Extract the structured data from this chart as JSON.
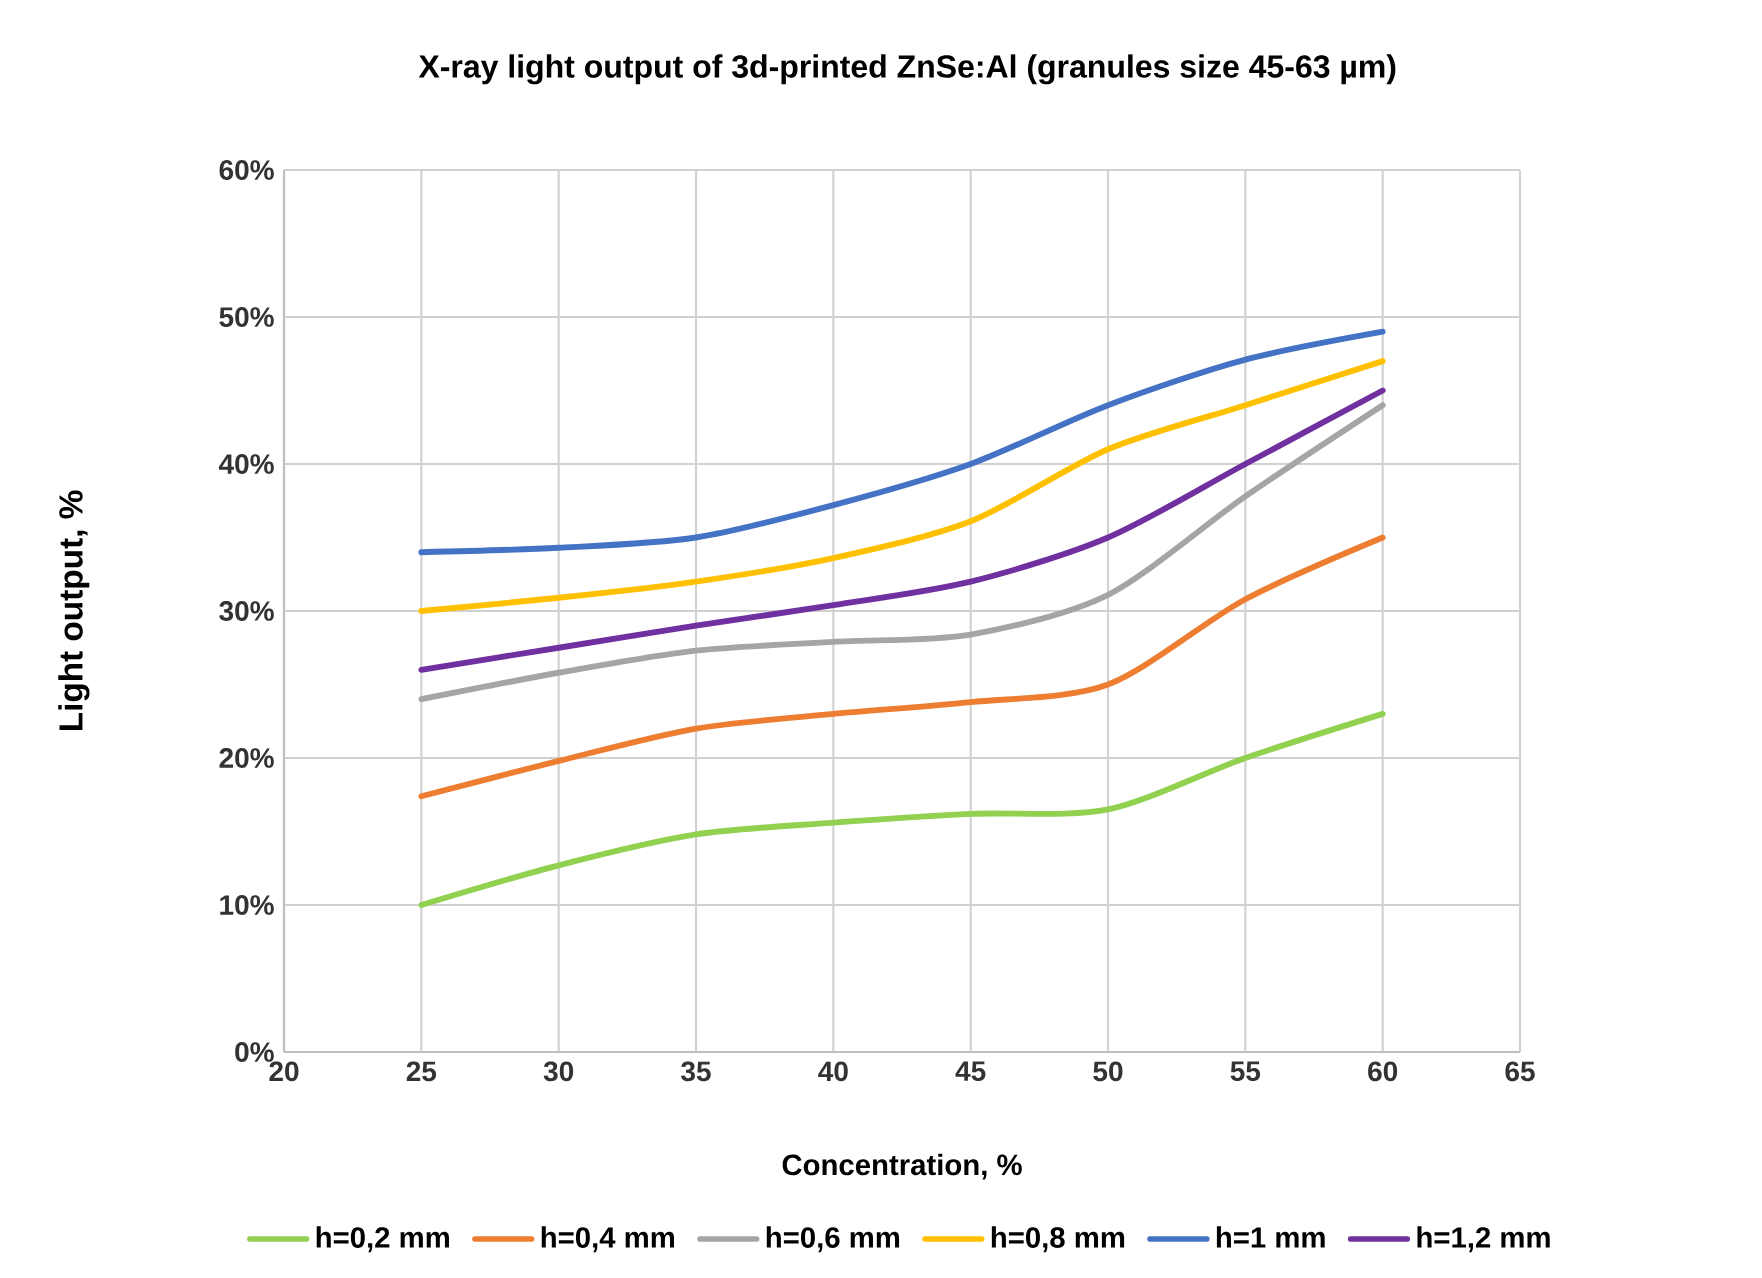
{
  "chart_data": {
    "type": "line",
    "title": "X-ray light output of 3d-printed ZnSe:Al (granules size 45-63 µm)",
    "xlabel": "Concentration, %",
    "ylabel": "Light output, %",
    "x": [
      25,
      30,
      35,
      40,
      45,
      50,
      55,
      60
    ],
    "xlim": [
      20,
      65
    ],
    "xticks": [
      20,
      25,
      30,
      35,
      40,
      45,
      50,
      55,
      60,
      65
    ],
    "ylim": [
      0,
      60
    ],
    "yticks": [
      {
        "value": 0,
        "label": "0%"
      },
      {
        "value": 10,
        "label": "10%"
      },
      {
        "value": 20,
        "label": "20%"
      },
      {
        "value": 30,
        "label": "30%"
      },
      {
        "value": 40,
        "label": "40%"
      },
      {
        "value": 50,
        "label": "50%"
      },
      {
        "value": 60,
        "label": "60%"
      }
    ],
    "grid": true,
    "legend": "bottom",
    "marker": "none",
    "line_style": "solid",
    "series": [
      {
        "name": "h=0,2 mm",
        "color": "#92d050",
        "values": [
          10,
          12.7,
          14.8,
          15.6,
          16.2,
          16.5,
          20,
          23
        ]
      },
      {
        "name": "h=0,4 mm",
        "color": "#ed7d31",
        "values": [
          17.4,
          19.8,
          22,
          23,
          23.8,
          25,
          30.8,
          35
        ]
      },
      {
        "name": "h=0,6 mm",
        "color": "#a5a5a5",
        "values": [
          24,
          25.8,
          27.3,
          27.9,
          28.4,
          31.1,
          37.8,
          44
        ]
      },
      {
        "name": "h=0,8 mm",
        "color": "#ffc000",
        "values": [
          30,
          30.9,
          32,
          33.6,
          36.1,
          41,
          44,
          47
        ]
      },
      {
        "name": "h=1 mm",
        "color": "#4472c4",
        "values": [
          34,
          34.3,
          35,
          37.2,
          40,
          44,
          47.1,
          49
        ]
      },
      {
        "name": "h=1,2 mm",
        "color": "#7030a0",
        "values": [
          26,
          27.5,
          29,
          30.4,
          32,
          35,
          40,
          45
        ]
      }
    ]
  }
}
